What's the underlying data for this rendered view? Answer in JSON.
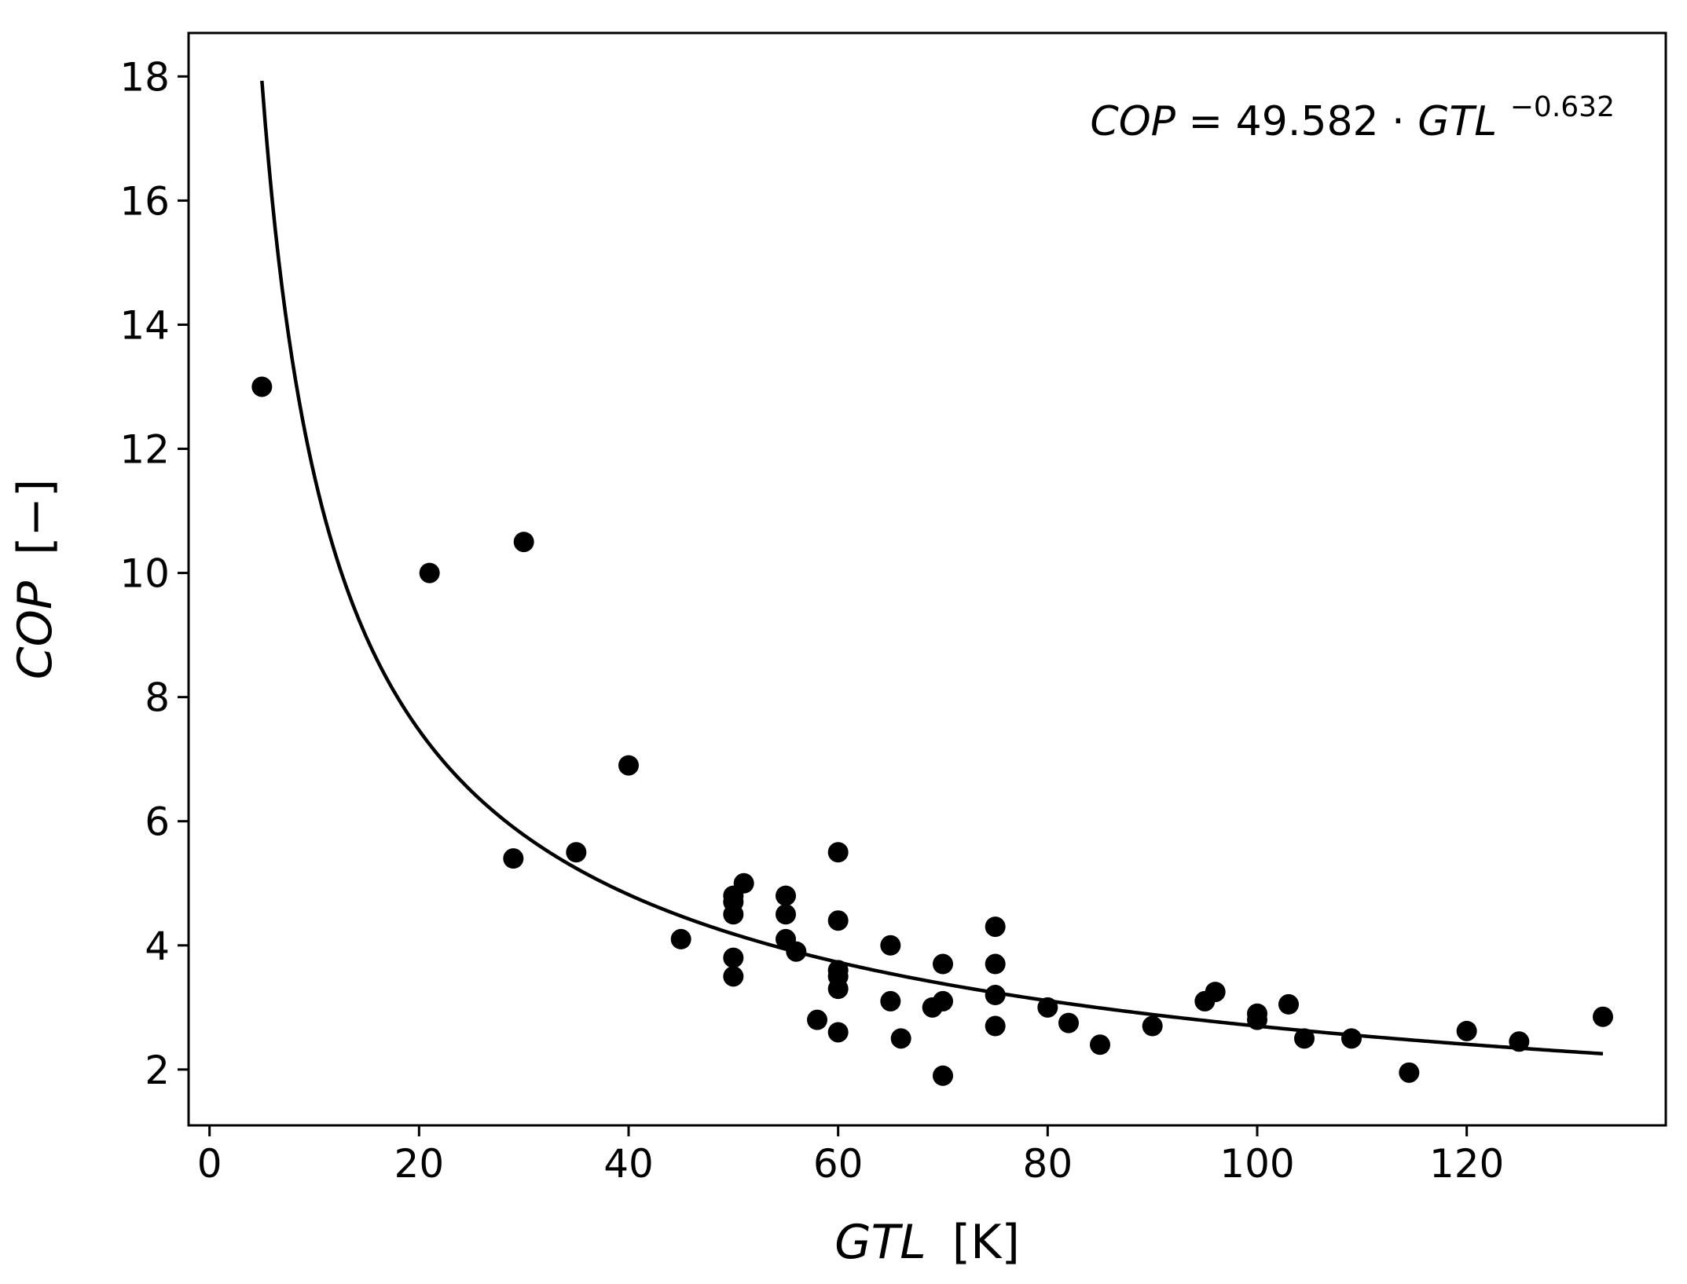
{
  "chart_data": {
    "type": "scatter",
    "title": "",
    "xlabel": {
      "var": "GTL",
      "unit": "[K]"
    },
    "ylabel": {
      "var": "COP",
      "unit": "[−]"
    },
    "xlim": [
      -2,
      139
    ],
    "ylim": [
      1.1,
      18.7
    ],
    "xticks": [
      0,
      20,
      40,
      60,
      80,
      100,
      120
    ],
    "yticks": [
      2,
      4,
      6,
      8,
      10,
      12,
      14,
      16,
      18
    ],
    "grid": false,
    "points_color": "#000000",
    "points": [
      [
        5,
        13.0
      ],
      [
        21,
        10.0
      ],
      [
        30,
        10.5
      ],
      [
        29,
        5.4
      ],
      [
        35,
        5.5
      ],
      [
        40,
        6.9
      ],
      [
        45,
        4.1
      ],
      [
        50,
        4.8
      ],
      [
        50,
        4.7
      ],
      [
        50,
        4.5
      ],
      [
        50,
        3.8
      ],
      [
        50,
        3.5
      ],
      [
        51,
        5.0
      ],
      [
        55,
        4.8
      ],
      [
        55,
        4.5
      ],
      [
        55,
        4.1
      ],
      [
        56,
        3.9
      ],
      [
        58,
        2.8
      ],
      [
        60,
        5.5
      ],
      [
        60,
        4.4
      ],
      [
        60,
        3.6
      ],
      [
        60,
        3.5
      ],
      [
        60,
        3.3
      ],
      [
        60,
        2.6
      ],
      [
        65,
        4.0
      ],
      [
        65,
        3.1
      ],
      [
        66,
        2.5
      ],
      [
        69,
        3.0
      ],
      [
        70,
        3.7
      ],
      [
        70,
        3.1
      ],
      [
        70,
        1.9
      ],
      [
        75,
        4.3
      ],
      [
        75,
        3.7
      ],
      [
        75,
        3.2
      ],
      [
        75,
        2.7
      ],
      [
        80,
        3.0
      ],
      [
        82,
        2.75
      ],
      [
        85,
        2.4
      ],
      [
        90,
        2.7
      ],
      [
        95,
        3.1
      ],
      [
        96,
        3.25
      ],
      [
        100,
        2.9
      ],
      [
        100,
        2.8
      ],
      [
        103,
        3.05
      ],
      [
        104.5,
        2.5
      ],
      [
        109,
        2.5
      ],
      [
        114.5,
        1.95
      ],
      [
        120,
        2.62
      ],
      [
        125,
        2.45
      ],
      [
        133,
        2.85
      ]
    ],
    "fit": {
      "label": "fit curve",
      "coefficient": 49.582,
      "exponent": -0.632,
      "x_range": [
        5,
        133
      ]
    },
    "annotation": {
      "lhs": "COP",
      "eq": "=",
      "coef": "49.582",
      "dot": "·",
      "var": "GTL",
      "exp": "−0.632"
    }
  }
}
